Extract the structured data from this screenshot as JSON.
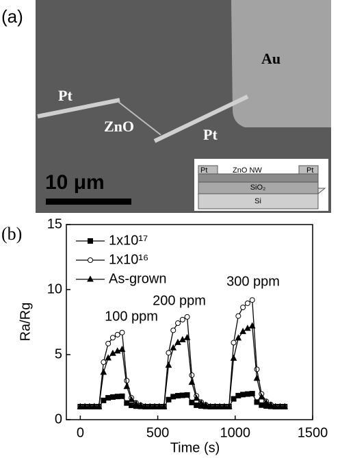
{
  "panels": {
    "a": "(a)",
    "b": "(b)"
  },
  "image_labels": {
    "au": "Au",
    "pt_left": "Pt",
    "zno": "ZnO",
    "pt_right": "Pt",
    "scale": "10 μm"
  },
  "inset": {
    "pt_left": "Pt",
    "zno": "ZnO NW",
    "pt_right": "Pt",
    "sio2": "SiO₂",
    "si": "Si"
  },
  "chart_data": {
    "type": "line",
    "x_label": "Time (s)",
    "y_label": "Ra/Rg",
    "x": [
      0,
      30,
      60,
      90,
      120,
      150,
      180,
      210,
      240,
      270,
      300,
      330,
      360,
      390,
      420,
      450,
      480,
      510,
      540,
      570,
      600,
      630,
      660,
      690,
      720,
      750,
      780,
      810,
      840,
      870,
      900,
      930,
      960,
      990,
      1020,
      1050,
      1080,
      1110,
      1140,
      1170,
      1200,
      1230,
      1260,
      1290,
      1320
    ],
    "series": [
      {
        "name": "1x10¹⁷",
        "color": "#000000",
        "marker": "square",
        "values": [
          1,
          1,
          1,
          1,
          1,
          1.48,
          1.68,
          1.74,
          1.78,
          1.8,
          1.28,
          1.1,
          1.04,
          1.02,
          1,
          1,
          1,
          1,
          1,
          1.54,
          1.77,
          1.84,
          1.87,
          1.9,
          1.32,
          1.11,
          1.05,
          1.02,
          1,
          1,
          1,
          1,
          1,
          1.6,
          1.85,
          1.93,
          1.97,
          2.0,
          1.35,
          1.12,
          1.05,
          1.02,
          1,
          1,
          1
        ]
      },
      {
        "name": "1x10¹⁶",
        "color": "#000000",
        "marker": "open-circle",
        "values": [
          1,
          1,
          1,
          1,
          1,
          4.42,
          5.85,
          6.3,
          6.53,
          6.7,
          3.0,
          1.68,
          1.29,
          1.11,
          1,
          1,
          1,
          1,
          1,
          5.14,
          6.87,
          7.42,
          7.69,
          7.9,
          3.42,
          1.83,
          1.35,
          1.14,
          1,
          1,
          1,
          1,
          1,
          5.92,
          7.97,
          8.63,
          8.95,
          9.2,
          3.87,
          1.98,
          1.41,
          1.16,
          1,
          1,
          1
        ]
      },
      {
        "name": "As-grown",
        "color": "#000000",
        "marker": "triangle",
        "values": [
          1,
          1,
          1,
          1,
          1,
          3.64,
          4.74,
          5.09,
          5.27,
          5.4,
          2.54,
          1.53,
          1.22,
          1.09,
          1,
          1,
          1,
          1,
          1,
          4.18,
          5.51,
          5.93,
          6.14,
          6.3,
          2.86,
          1.64,
          1.27,
          1.11,
          1,
          1,
          1,
          1,
          1,
          4.72,
          6.27,
          6.77,
          7.01,
          7.2,
          3.17,
          1.74,
          1.31,
          1.12,
          1,
          1,
          1
        ]
      }
    ],
    "annotations": [
      "100 ppm",
      "200 ppm",
      "300 ppm"
    ],
    "xlim": [
      -90,
      1500
    ],
    "xticks": [
      0,
      500,
      1000,
      1500
    ],
    "ylim": [
      0,
      15
    ],
    "yticks": [
      0,
      5,
      10,
      15
    ],
    "legend": "upper-left",
    "grid": false
  }
}
